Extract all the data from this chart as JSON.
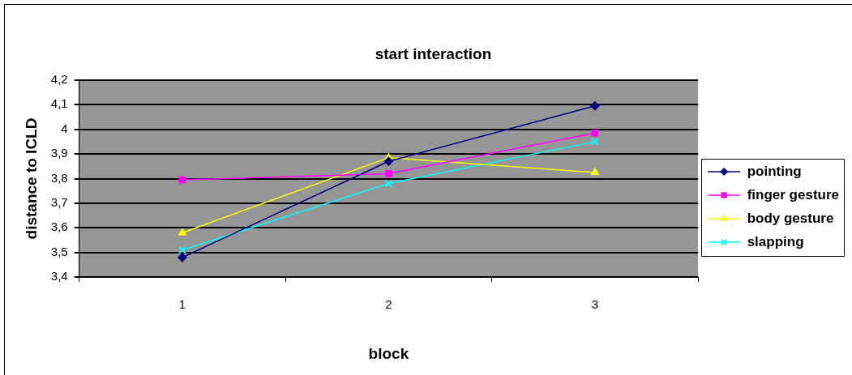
{
  "chart_data": {
    "type": "line",
    "title": "start interaction",
    "xlabel": "block",
    "ylabel": "distance to ICLD",
    "categories": [
      "1",
      "2",
      "3"
    ],
    "series": [
      {
        "name": "pointing",
        "color": "#000080",
        "marker": "diamond",
        "values": [
          3.48,
          3.87,
          4.095
        ]
      },
      {
        "name": "finger gesture",
        "color": "#ff00ff",
        "marker": "square",
        "values": [
          3.795,
          3.82,
          3.985
        ]
      },
      {
        "name": "body gesture",
        "color": "#ffff00",
        "marker": "triangle",
        "values": [
          3.58,
          3.885,
          3.825
        ]
      },
      {
        "name": "slapping",
        "color": "#00ffff",
        "marker": "cross",
        "values": [
          3.51,
          3.78,
          3.95
        ]
      }
    ],
    "ylim": [
      3.4,
      4.2
    ],
    "yticks": [
      {
        "value": 3.4,
        "label": "3,4"
      },
      {
        "value": 3.5,
        "label": "3,5"
      },
      {
        "value": 3.6,
        "label": "3,6"
      },
      {
        "value": 3.7,
        "label": "3,7"
      },
      {
        "value": 3.8,
        "label": "3,8"
      },
      {
        "value": 3.9,
        "label": "3,9"
      },
      4,
      {
        "value": 4.1,
        "label": "4,1"
      },
      {
        "value": 4.2,
        "label": "4,2"
      }
    ],
    "grid": "y",
    "legend": "right"
  }
}
